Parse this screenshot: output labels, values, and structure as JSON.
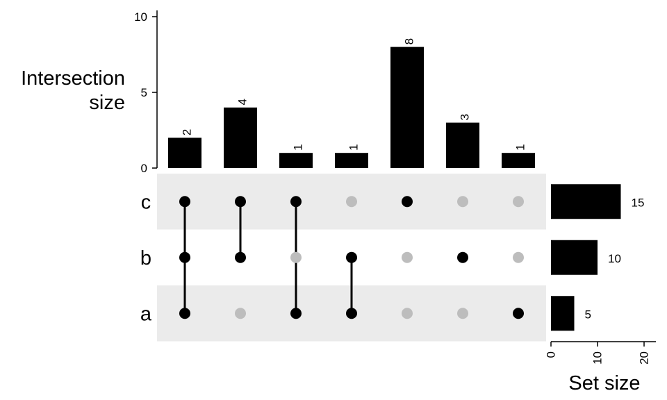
{
  "chart_data": {
    "type": "bar",
    "subtype": "upset",
    "sets": [
      "c",
      "b",
      "a"
    ],
    "intersections": [
      {
        "members": [
          "c",
          "b",
          "a"
        ],
        "size": 2
      },
      {
        "members": [
          "c",
          "b"
        ],
        "size": 4
      },
      {
        "members": [
          "c",
          "a"
        ],
        "size": 1
      },
      {
        "members": [
          "b",
          "a"
        ],
        "size": 1
      },
      {
        "members": [
          "c"
        ],
        "size": 8
      },
      {
        "members": [
          "b"
        ],
        "size": 3
      },
      {
        "members": [
          "a"
        ],
        "size": 1
      }
    ],
    "set_sizes": [
      {
        "set": "c",
        "size": 15
      },
      {
        "set": "b",
        "size": 10
      },
      {
        "set": "a",
        "size": 5
      }
    ],
    "ylabel": "Intersection\nsize",
    "ylim": [
      0,
      10
    ],
    "yticks": [
      "0",
      "5",
      "10"
    ],
    "set_size_label": "Set size",
    "set_size_xlim": [
      0,
      23
    ],
    "set_size_ticks": [
      "0",
      "10",
      "20"
    ],
    "colors": {
      "bar": "#000000",
      "dot_active": "#000000",
      "dot_inactive": "#bdbdbd",
      "stripe": "#ebebeb"
    }
  }
}
